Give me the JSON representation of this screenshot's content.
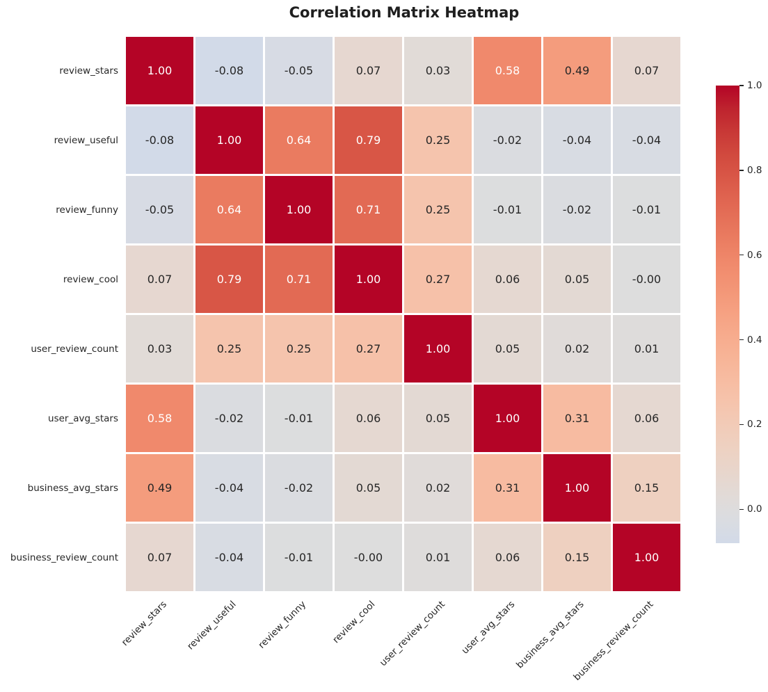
{
  "title": "Correlation Matrix Heatmap",
  "chart_data": {
    "type": "heatmap",
    "title": "Correlation Matrix Heatmap",
    "categories": [
      "review_stars",
      "review_useful",
      "review_funny",
      "review_cool",
      "user_review_count",
      "user_avg_stars",
      "business_avg_stars",
      "business_review_count"
    ],
    "matrix": [
      [
        "1.00",
        "-0.08",
        "-0.05",
        "0.07",
        "0.03",
        "0.58",
        "0.49",
        "0.07"
      ],
      [
        "-0.08",
        "1.00",
        "0.64",
        "0.79",
        "0.25",
        "-0.02",
        "-0.04",
        "-0.04"
      ],
      [
        "-0.05",
        "0.64",
        "1.00",
        "0.71",
        "0.25",
        "-0.01",
        "-0.02",
        "-0.01"
      ],
      [
        "0.07",
        "0.79",
        "0.71",
        "1.00",
        "0.27",
        "0.06",
        "0.05",
        "-0.00"
      ],
      [
        "0.03",
        "0.25",
        "0.25",
        "0.27",
        "1.00",
        "0.05",
        "0.02",
        "0.01"
      ],
      [
        "0.58",
        "-0.02",
        "-0.01",
        "0.06",
        "0.05",
        "1.00",
        "0.31",
        "0.06"
      ],
      [
        "0.49",
        "-0.04",
        "-0.02",
        "0.05",
        "0.02",
        "0.31",
        "1.00",
        "0.15"
      ],
      [
        "0.07",
        "-0.04",
        "-0.01",
        "-0.00",
        "0.01",
        "0.06",
        "0.15",
        "1.00"
      ]
    ],
    "colormap": "coolwarm",
    "vmin": -0.08,
    "vmax": 1.0,
    "center": 0,
    "grid": false,
    "legend_position": "right-colorbar",
    "colorbar": {
      "tick_values": [
        1.0,
        0.8,
        0.6,
        0.4,
        0.2,
        0.0
      ],
      "tick_labels": [
        "1.0",
        "0.8",
        "0.6",
        "0.4",
        "0.2",
        "0.0"
      ]
    }
  },
  "colors": {
    "background": "#ffffff",
    "cell_gap": "#ffffff",
    "title_text": "#1f1f1f",
    "axis_text": "#262626",
    "annot_dark": "#262626",
    "annot_light": "#ffffff",
    "cmap_max": "#b40426",
    "cmap_mid": "#dddcdc",
    "cmap_low_end": "#d2d9e5"
  }
}
